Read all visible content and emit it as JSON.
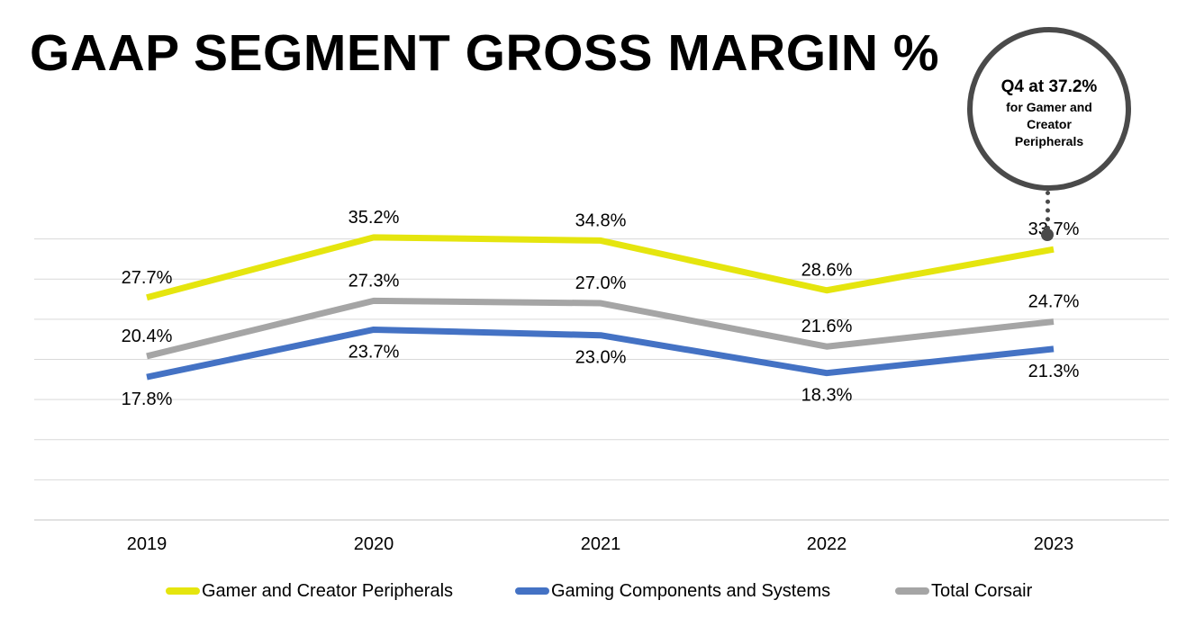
{
  "title": "GAAP SEGMENT GROSS MARGIN %",
  "callout": {
    "headline": "Q4 at 37.2%",
    "body": "for Gamer and Creator Peripherals"
  },
  "chart_data": {
    "type": "line",
    "categories": [
      "2019",
      "2020",
      "2021",
      "2022",
      "2023"
    ],
    "series": [
      {
        "name": "Gamer and Creator Peripherals",
        "values": [
          27.7,
          35.2,
          34.8,
          28.6,
          33.7
        ],
        "labels": [
          "27.7%",
          "35.2%",
          "34.8%",
          "28.6%",
          "33.7%"
        ],
        "color": "#e5e50e",
        "label_position": "above"
      },
      {
        "name": "Gaming Components and Systems",
        "values": [
          17.8,
          23.7,
          23.0,
          18.3,
          21.3
        ],
        "labels": [
          "17.8%",
          "23.7%",
          "23.0%",
          "18.3%",
          "21.3%"
        ],
        "color": "#4472c4",
        "label_position": "below"
      },
      {
        "name": "Total Corsair",
        "values": [
          20.4,
          27.3,
          27.0,
          21.6,
          24.7
        ],
        "labels": [
          "20.4%",
          "27.3%",
          "27.0%",
          "21.6%",
          "24.7%"
        ],
        "color": "#a5a5a5",
        "label_position": "above"
      }
    ],
    "ylim": [
      0,
      40
    ],
    "grid": true,
    "legend": "bottom"
  }
}
